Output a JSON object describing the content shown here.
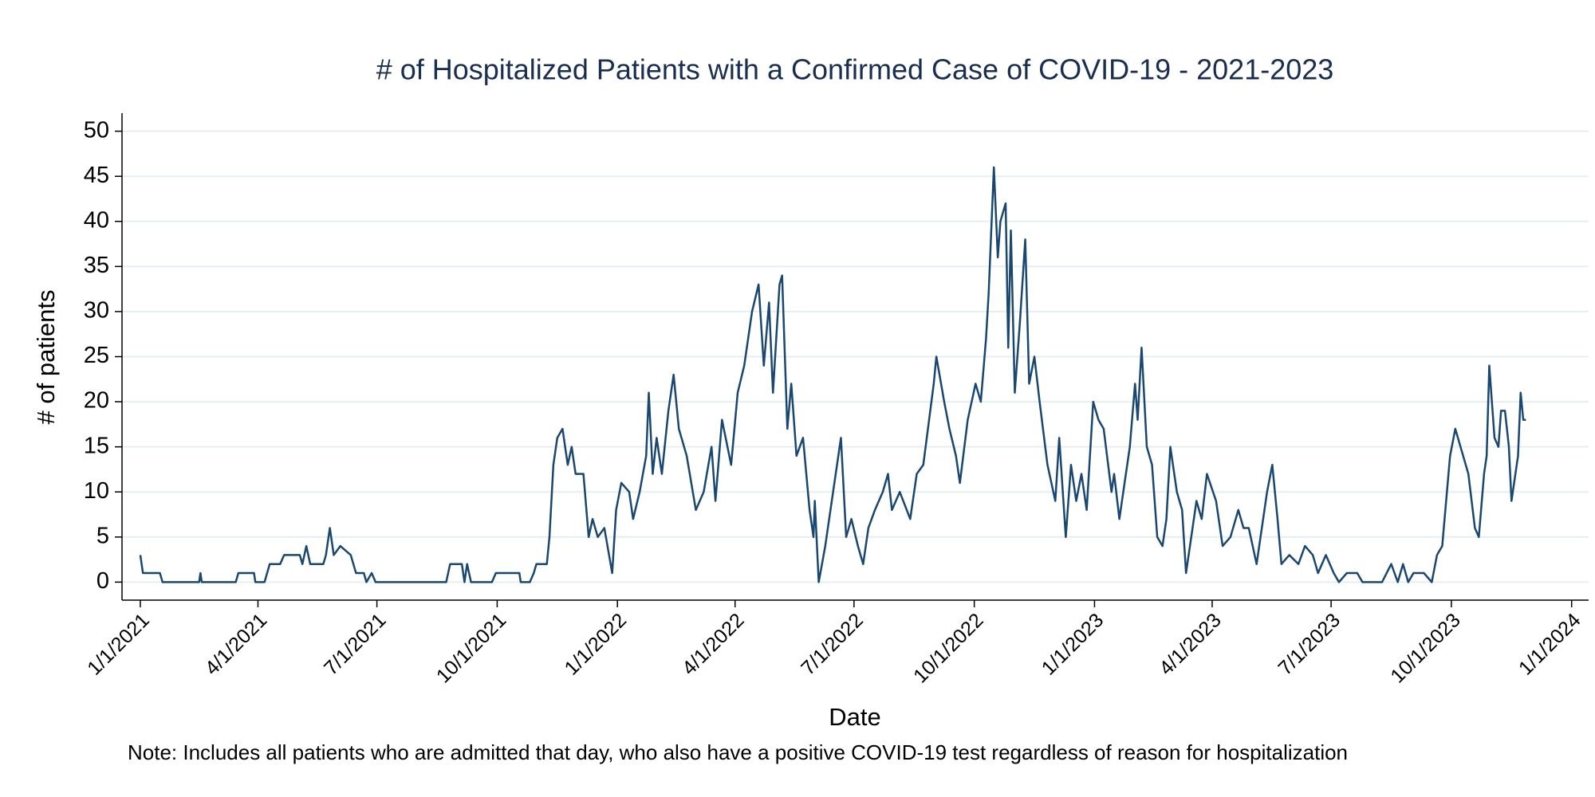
{
  "chart_data": {
    "type": "line",
    "title": "# of Hospitalized Patients with a Confirmed Case of COVID-19 - 2021-2023",
    "x_label": "Date",
    "y_label": "# of patients",
    "note": "Note: Includes all patients who are admitted that day, who also have a positive COVID-19 test regardless of reason for hospitalization",
    "color": "#1a476f",
    "grid": true,
    "xlim": [
      "2020-12-18",
      "2024-01-14"
    ],
    "xticks": [
      {
        "value": "2021-01-01",
        "label": "1/1/2021"
      },
      {
        "value": "2021-04-01",
        "label": "4/1/2021"
      },
      {
        "value": "2021-07-01",
        "label": "7/1/2021"
      },
      {
        "value": "2021-10-01",
        "label": "10/1/2021"
      },
      {
        "value": "2022-01-01",
        "label": "1/1/2022"
      },
      {
        "value": "2022-04-01",
        "label": "4/1/2022"
      },
      {
        "value": "2022-07-01",
        "label": "7/1/2022"
      },
      {
        "value": "2022-10-01",
        "label": "10/1/2022"
      },
      {
        "value": "2023-01-01",
        "label": "1/1/2023"
      },
      {
        "value": "2023-04-01",
        "label": "4/1/2023"
      },
      {
        "value": "2023-07-01",
        "label": "7/1/2023"
      },
      {
        "value": "2023-10-01",
        "label": "10/1/2023"
      },
      {
        "value": "2024-01-01",
        "label": "1/1/2024"
      }
    ],
    "ylim": [
      -2,
      52
    ],
    "yticks": [
      0,
      5,
      10,
      15,
      20,
      25,
      30,
      35,
      40,
      45,
      50
    ],
    "x": [
      "2021-01-01",
      "2021-01-03",
      "2021-01-16",
      "2021-01-18",
      "2021-02-15",
      "2021-02-16",
      "2021-02-17",
      "2021-03-15",
      "2021-03-17",
      "2021-03-29",
      "2021-03-30",
      "2021-04-06",
      "2021-04-08",
      "2021-04-10",
      "2021-04-18",
      "2021-04-21",
      "2021-05-03",
      "2021-05-05",
      "2021-05-08",
      "2021-05-11",
      "2021-05-21",
      "2021-05-23",
      "2021-05-26",
      "2021-05-29",
      "2021-06-03",
      "2021-06-11",
      "2021-06-15",
      "2021-06-21",
      "2021-06-23",
      "2021-06-27",
      "2021-06-30",
      "2021-08-23",
      "2021-08-26",
      "2021-09-04",
      "2021-09-06",
      "2021-09-08",
      "2021-09-11",
      "2021-09-27",
      "2021-09-30",
      "2021-10-18",
      "2021-10-19",
      "2021-10-26",
      "2021-10-29",
      "2021-10-31",
      "2021-11-08",
      "2021-11-10",
      "2021-11-13",
      "2021-11-16",
      "2021-11-20",
      "2021-11-24",
      "2021-11-27",
      "2021-11-30",
      "2021-12-06",
      "2021-12-10",
      "2021-12-13",
      "2021-12-17",
      "2021-12-22",
      "2021-12-28",
      "2021-12-31",
      "2022-01-04",
      "2022-01-10",
      "2022-01-13",
      "2022-01-18",
      "2022-01-23",
      "2022-01-25",
      "2022-01-28",
      "2022-01-31",
      "2022-02-04",
      "2022-02-09",
      "2022-02-13",
      "2022-02-17",
      "2022-02-23",
      "2022-03-02",
      "2022-03-08",
      "2022-03-14",
      "2022-03-17",
      "2022-03-22",
      "2022-03-29",
      "2022-04-03",
      "2022-04-08",
      "2022-04-14",
      "2022-04-19",
      "2022-04-23",
      "2022-04-27",
      "2022-04-30",
      "2022-05-05",
      "2022-05-07",
      "2022-05-11",
      "2022-05-14",
      "2022-05-18",
      "2022-05-23",
      "2022-05-28",
      "2022-05-31",
      "2022-06-01",
      "2022-06-04",
      "2022-06-09",
      "2022-06-13",
      "2022-06-17",
      "2022-06-21",
      "2022-06-25",
      "2022-06-29",
      "2022-07-04",
      "2022-07-08",
      "2022-07-12",
      "2022-07-17",
      "2022-07-23",
      "2022-07-27",
      "2022-07-30",
      "2022-08-05",
      "2022-08-13",
      "2022-08-18",
      "2022-08-23",
      "2022-08-31",
      "2022-09-02",
      "2022-09-08",
      "2022-09-12",
      "2022-09-17",
      "2022-09-20",
      "2022-09-26",
      "2022-10-02",
      "2022-10-06",
      "2022-10-10",
      "2022-10-12",
      "2022-10-16",
      "2022-10-19",
      "2022-10-21",
      "2022-10-25",
      "2022-10-27",
      "2022-10-29",
      "2022-11-01",
      "2022-11-05",
      "2022-11-09",
      "2022-11-12",
      "2022-11-16",
      "2022-11-20",
      "2022-11-26",
      "2022-12-02",
      "2022-12-05",
      "2022-12-10",
      "2022-12-14",
      "2022-12-18",
      "2022-12-22",
      "2022-12-26",
      "2022-12-31",
      "2023-01-04",
      "2023-01-08",
      "2023-01-14",
      "2023-01-16",
      "2023-01-20",
      "2023-01-24",
      "2023-01-28",
      "2023-02-01",
      "2023-02-03",
      "2023-02-06",
      "2023-02-10",
      "2023-02-14",
      "2023-02-18",
      "2023-02-22",
      "2023-02-25",
      "2023-02-28",
      "2023-03-05",
      "2023-03-09",
      "2023-03-12",
      "2023-03-16",
      "2023-03-20",
      "2023-03-24",
      "2023-03-28",
      "2023-04-04",
      "2023-04-09",
      "2023-04-15",
      "2023-04-21",
      "2023-04-25",
      "2023-04-29",
      "2023-05-05",
      "2023-05-08",
      "2023-05-13",
      "2023-05-17",
      "2023-05-21",
      "2023-05-24",
      "2023-05-30",
      "2023-06-06",
      "2023-06-11",
      "2023-06-17",
      "2023-06-21",
      "2023-06-27",
      "2023-07-03",
      "2023-07-07",
      "2023-07-13",
      "2023-07-21",
      "2023-07-25",
      "2023-08-09",
      "2023-08-16",
      "2023-08-21",
      "2023-08-25",
      "2023-08-29",
      "2023-09-02",
      "2023-09-10",
      "2023-09-16",
      "2023-09-20",
      "2023-09-24",
      "2023-09-30",
      "2023-10-04",
      "2023-10-10",
      "2023-10-14",
      "2023-10-19",
      "2023-10-22",
      "2023-10-26",
      "2023-10-28",
      "2023-10-30",
      "2023-11-03",
      "2023-11-06",
      "2023-11-08",
      "2023-11-11",
      "2023-11-14",
      "2023-11-16",
      "2023-11-19",
      "2023-11-21",
      "2023-11-23",
      "2023-11-25",
      "2023-11-27"
    ],
    "values": [
      3,
      1,
      1,
      0,
      0,
      1,
      0,
      0,
      1,
      1,
      0,
      0,
      1,
      2,
      2,
      3,
      3,
      2,
      4,
      2,
      2,
      3,
      6,
      3,
      4,
      3,
      1,
      1,
      0,
      1,
      0,
      0,
      2,
      2,
      0,
      2,
      0,
      0,
      1,
      1,
      0,
      0,
      1,
      2,
      2,
      5,
      13,
      16,
      17,
      13,
      15,
      12,
      12,
      5,
      7,
      5,
      6,
      1,
      8,
      11,
      10,
      7,
      10,
      14,
      21,
      12,
      16,
      12,
      19,
      23,
      17,
      14,
      8,
      10,
      15,
      9,
      18,
      13,
      21,
      24,
      30,
      33,
      24,
      31,
      21,
      33,
      34,
      17,
      22,
      14,
      16,
      8,
      5,
      9,
      0,
      4,
      8,
      12,
      16,
      5,
      7,
      4,
      2,
      6,
      8,
      10,
      12,
      8,
      10,
      7,
      12,
      13,
      22,
      25,
      20,
      17,
      14,
      11,
      18,
      22,
      20,
      27,
      32,
      46,
      36,
      40,
      42,
      26,
      39,
      21,
      29,
      38,
      22,
      25,
      20,
      13,
      9,
      16,
      5,
      13,
      9,
      12,
      8,
      20,
      18,
      17,
      10,
      12,
      7,
      11,
      15,
      22,
      18,
      26,
      15,
      13,
      5,
      4,
      7,
      15,
      10,
      8,
      1,
      5,
      9,
      7,
      12,
      9,
      4,
      5,
      8,
      6,
      6,
      2,
      5,
      10,
      13,
      7,
      2,
      3,
      2,
      4,
      3,
      1,
      3,
      1,
      0,
      1,
      1,
      0,
      0,
      2,
      0,
      2,
      0,
      1,
      1,
      0,
      3,
      4,
      14,
      17,
      14,
      12,
      6,
      5,
      12,
      14,
      24,
      16,
      15,
      19,
      19,
      15,
      9,
      12,
      14,
      21,
      18,
      18
    ]
  }
}
